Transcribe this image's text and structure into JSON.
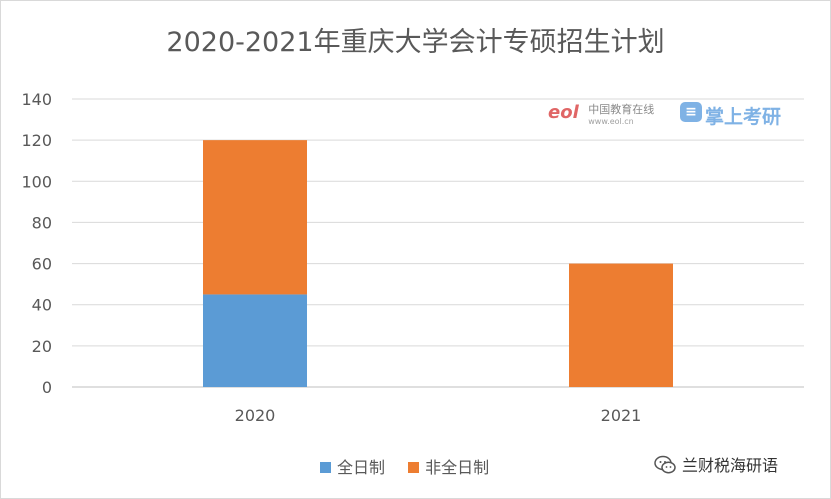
{
  "chart_data": {
    "type": "bar",
    "stacked": true,
    "title": "2020-2021年重庆大学会计专硕招生计划",
    "categories": [
      "2020",
      "2021"
    ],
    "series": [
      {
        "name": "全日制",
        "color": "#5b9bd5",
        "values": [
          45,
          0
        ]
      },
      {
        "name": "非全日制",
        "color": "#ed7d31",
        "values": [
          75,
          60
        ]
      }
    ],
    "ylim": [
      0,
      140
    ],
    "yticks": [
      "0",
      "20",
      "40",
      "60",
      "80",
      "100",
      "120",
      "140"
    ],
    "grid": true,
    "legend_position": "bottom"
  },
  "watermarks": {
    "eol_logo": "eol",
    "eol_site": "中国教育在线",
    "eol_url": "www.eol.cn",
    "kaoyan": "掌上考研"
  },
  "wechat_account": "兰财税海研语"
}
